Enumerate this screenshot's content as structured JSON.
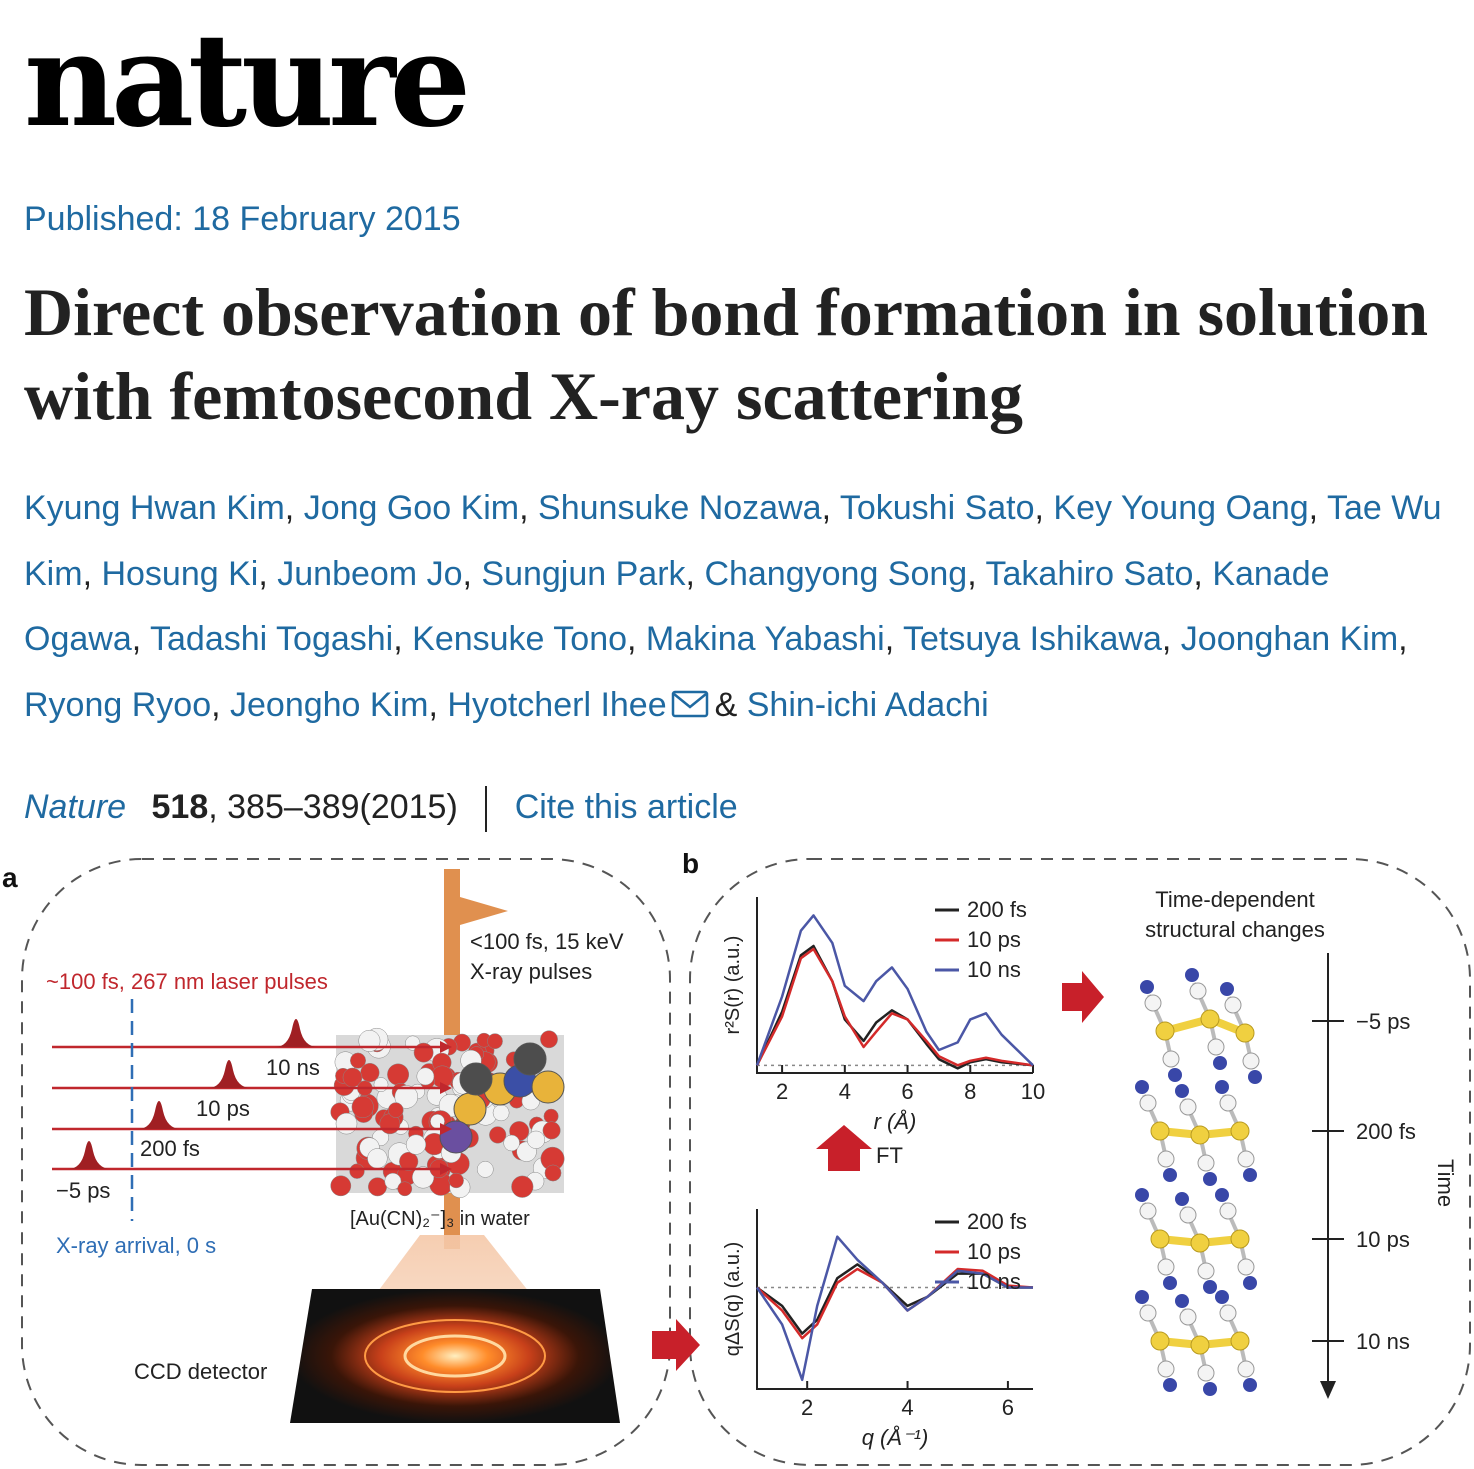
{
  "journal": {
    "brand": "nature"
  },
  "article": {
    "published": "Published: 18 February 2015",
    "title": "Direct observation of bond formation in solution with femtosecond X-ray scattering",
    "authors": [
      "Kyung Hwan Kim",
      "Jong Goo Kim",
      "Shunsuke Nozawa",
      "Tokushi Sato",
      "Key Young Oang",
      "Tae Wu Kim",
      "Hosung Ki",
      "Junbeom Jo",
      "Sungjun Park",
      "Changyong Song",
      "Takahiro Sato",
      "Kanade Ogawa",
      "Tadashi Togashi",
      "Kensuke Tono",
      "Makina Yabashi",
      "Tetsuya Ishikawa",
      "Joonghan Kim",
      "Ryong Ryoo",
      "Jeongho Kim",
      "Hyotcherl Ihee",
      "Shin-ichi Adachi"
    ],
    "corresponding_author_icon": "mail-icon",
    "citation": {
      "journal": "Nature",
      "volume": "518",
      "pages": ", 385–389(2015)",
      "cite_link": "Cite this article"
    }
  },
  "figure": {
    "panel_a": {
      "label": "a",
      "laser_label": "~100 fs, 267 nm laser pulses",
      "xray_label_1": "<100 fs, 15 keV",
      "xray_label_2": "X-ray pulses",
      "delays": [
        "10 ns",
        "10 ps",
        "200 fs",
        "−5 ps"
      ],
      "arrival_label": "X-ray arrival, 0 s",
      "sample_label": "[Au(CN)₂⁻]₃ in water",
      "detector_label": "CCD detector"
    },
    "panel_b": {
      "label": "b",
      "ft_label": "FT",
      "structure_title_1": "Time-dependent",
      "structure_title_2": "structural changes",
      "time_axis_label": "Time",
      "time_ticks": [
        "−5 ps",
        "200 fs",
        "10 ps",
        "10 ns"
      ]
    }
  },
  "colors": {
    "link": "#1f6aa1",
    "s200fs": "#222222",
    "s10ps": "#d42a2a",
    "s10ns": "#4b57a6",
    "laser": "#c0272d"
  },
  "chart_data": [
    {
      "type": "line",
      "xlabel": "r (Å)",
      "ylabel": "r²S(r) (a.u.)",
      "xlim": [
        1.2,
        10
      ],
      "xticks": [
        2,
        4,
        6,
        8,
        10
      ],
      "series": [
        {
          "name": "200 fs",
          "x": [
            1.2,
            2,
            2.6,
            3,
            3.6,
            4,
            4.6,
            5,
            5.5,
            6,
            6.6,
            7,
            7.6,
            8,
            8.5,
            9,
            10
          ],
          "y": [
            0,
            0.35,
            0.72,
            0.78,
            0.55,
            0.3,
            0.16,
            0.28,
            0.36,
            0.3,
            0.14,
            0.04,
            -0.02,
            0.02,
            0.04,
            0.02,
            0
          ]
        },
        {
          "name": "10 ps",
          "x": [
            1.2,
            2,
            2.6,
            3,
            3.6,
            4,
            4.6,
            5,
            5.5,
            6,
            6.6,
            7,
            7.6,
            8,
            8.5,
            9,
            10
          ],
          "y": [
            0,
            0.32,
            0.7,
            0.76,
            0.55,
            0.32,
            0.12,
            0.22,
            0.34,
            0.3,
            0.16,
            0.06,
            0,
            0.03,
            0.05,
            0.03,
            0
          ]
        },
        {
          "name": "10 ns",
          "x": [
            1.2,
            2,
            2.6,
            3,
            3.6,
            4,
            4.6,
            5,
            5.5,
            6,
            6.6,
            7,
            7.6,
            8,
            8.5,
            9,
            10
          ],
          "y": [
            0,
            0.45,
            0.88,
            0.98,
            0.8,
            0.52,
            0.42,
            0.55,
            0.64,
            0.5,
            0.22,
            0.1,
            0.15,
            0.3,
            0.34,
            0.2,
            0
          ]
        }
      ]
    },
    {
      "type": "line",
      "xlabel": "q (Å⁻¹)",
      "ylabel": "qΔS(q) (a.u.)",
      "xlim": [
        1,
        6.5
      ],
      "xticks": [
        2,
        4,
        6
      ],
      "series": [
        {
          "name": "200 fs",
          "x": [
            1,
            1.5,
            1.9,
            2.2,
            2.6,
            3,
            3.5,
            4,
            4.4,
            5,
            5.5,
            6,
            6.5
          ],
          "y": [
            0,
            -0.2,
            -0.5,
            -0.35,
            0.1,
            0.25,
            0.05,
            -0.2,
            -0.1,
            0.15,
            0.15,
            0,
            0
          ]
        },
        {
          "name": "10 ps",
          "x": [
            1,
            1.5,
            1.9,
            2.2,
            2.6,
            3,
            3.5,
            4,
            4.4,
            5,
            5.5,
            6,
            6.5
          ],
          "y": [
            0,
            -0.25,
            -0.55,
            -0.4,
            0.05,
            0.2,
            0.05,
            -0.25,
            -0.1,
            0.2,
            0.18,
            0.02,
            0
          ]
        },
        {
          "name": "10 ns",
          "x": [
            1,
            1.5,
            1.9,
            2.2,
            2.6,
            3,
            3.5,
            4,
            4.4,
            5,
            5.5,
            6,
            6.5
          ],
          "y": [
            0,
            -0.4,
            -1.0,
            -0.2,
            0.55,
            0.3,
            0.05,
            -0.25,
            -0.1,
            0.18,
            0.15,
            0,
            0
          ]
        }
      ]
    }
  ]
}
